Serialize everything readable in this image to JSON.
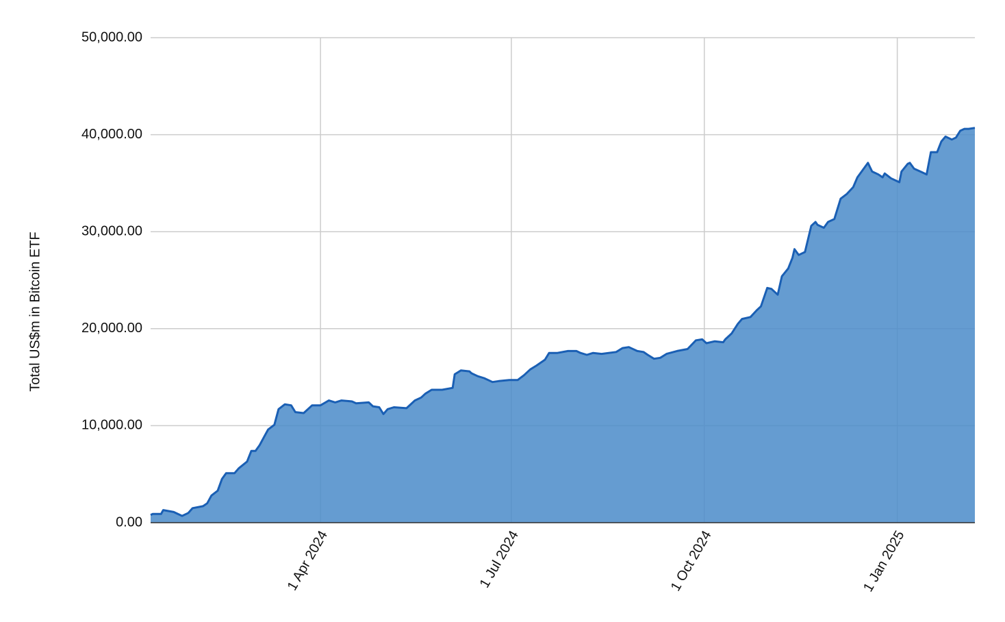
{
  "chart_data": {
    "type": "area",
    "y_label": "Total US$m in Bitcoin ETF",
    "color": "#4a8bc9",
    "line_color": "#1a5fb4",
    "grid": true,
    "xlim": [
      "2024-01-11",
      "2025-02-07"
    ],
    "xticks": [
      {
        "value": "2024-04-01",
        "label": "1 Apr 2024"
      },
      {
        "value": "2024-07-01",
        "label": "1 Jul 2024"
      },
      {
        "value": "2024-10-01",
        "label": "1 Oct 2024"
      },
      {
        "value": "2025-01-01",
        "label": "1 Jan 2025"
      }
    ],
    "ylim": [
      0,
      50000
    ],
    "yticks": [
      {
        "value": 0,
        "label": "0.00"
      },
      {
        "value": 10000,
        "label": "10,000.00"
      },
      {
        "value": 20000,
        "label": "20,000.00"
      },
      {
        "value": 30000,
        "label": "30,000.00"
      },
      {
        "value": 40000,
        "label": "40,000.00"
      },
      {
        "value": 50000,
        "label": "50,000.00"
      }
    ],
    "x": [
      "2024-01-11",
      "2024-01-12",
      "2024-01-16",
      "2024-01-17",
      "2024-01-22",
      "2024-01-26",
      "2024-01-29",
      "2024-01-31",
      "2024-02-05",
      "2024-02-07",
      "2024-02-09",
      "2024-02-12",
      "2024-02-14",
      "2024-02-16",
      "2024-02-20",
      "2024-02-22",
      "2024-02-26",
      "2024-02-28",
      "2024-03-01",
      "2024-03-03",
      "2024-03-05",
      "2024-03-07",
      "2024-03-10",
      "2024-03-12",
      "2024-03-15",
      "2024-03-18",
      "2024-03-20",
      "2024-03-24",
      "2024-03-28",
      "2024-04-01",
      "2024-04-05",
      "2024-04-08",
      "2024-04-11",
      "2024-04-16",
      "2024-04-18",
      "2024-04-24",
      "2024-04-26",
      "2024-04-29",
      "2024-05-01",
      "2024-05-03",
      "2024-05-06",
      "2024-05-12",
      "2024-05-16",
      "2024-05-19",
      "2024-05-21",
      "2024-05-24",
      "2024-05-29",
      "2024-06-03",
      "2024-06-04",
      "2024-06-07",
      "2024-06-11",
      "2024-06-12",
      "2024-06-15",
      "2024-06-18",
      "2024-06-22",
      "2024-06-25",
      "2024-06-30",
      "2024-07-04",
      "2024-07-07",
      "2024-07-10",
      "2024-07-13",
      "2024-07-17",
      "2024-07-19",
      "2024-07-23",
      "2024-07-28",
      "2024-08-01",
      "2024-08-03",
      "2024-08-06",
      "2024-08-09",
      "2024-08-13",
      "2024-08-20",
      "2024-08-23",
      "2024-08-26",
      "2024-08-30",
      "2024-09-02",
      "2024-09-04",
      "2024-09-07",
      "2024-09-10",
      "2024-09-13",
      "2024-09-18",
      "2024-09-23",
      "2024-09-27",
      "2024-09-30",
      "2024-10-02",
      "2024-10-06",
      "2024-10-10",
      "2024-10-11",
      "2024-10-14",
      "2024-10-17",
      "2024-10-19",
      "2024-10-23",
      "2024-10-26",
      "2024-10-28",
      "2024-10-31",
      "2024-11-02",
      "2024-11-05",
      "2024-11-07",
      "2024-11-10",
      "2024-11-12",
      "2024-11-13",
      "2024-11-15",
      "2024-11-18",
      "2024-11-21",
      "2024-11-23",
      "2024-11-24",
      "2024-11-27",
      "2024-11-29",
      "2024-12-02",
      "2024-12-05",
      "2024-12-08",
      "2024-12-11",
      "2024-12-13",
      "2024-12-16",
      "2024-12-18",
      "2024-12-20",
      "2024-12-23",
      "2024-12-25",
      "2024-12-26",
      "2024-12-29",
      "2025-01-02",
      "2025-01-03",
      "2025-01-06",
      "2025-01-07",
      "2025-01-09",
      "2025-01-13",
      "2025-01-15",
      "2025-01-17",
      "2025-01-20",
      "2025-01-22",
      "2025-01-24",
      "2025-01-27",
      "2025-01-29",
      "2025-01-31",
      "2025-02-02",
      "2025-02-04",
      "2025-02-07"
    ],
    "values": [
      800,
      900,
      900,
      1300,
      1100,
      700,
      1000,
      1500,
      1700,
      2000,
      2800,
      3300,
      4500,
      5100,
      5100,
      5600,
      6300,
      7400,
      7400,
      8000,
      8800,
      9600,
      10100,
      11700,
      12200,
      12100,
      11400,
      11300,
      12100,
      12100,
      12600,
      12400,
      12600,
      12500,
      12300,
      12400,
      12000,
      11900,
      11200,
      11700,
      11900,
      11800,
      12600,
      12900,
      13300,
      13700,
      13700,
      13900,
      15300,
      15700,
      15600,
      15400,
      15100,
      14900,
      14500,
      14600,
      14700,
      14700,
      15200,
      15800,
      16200,
      16800,
      17500,
      17500,
      17700,
      17700,
      17500,
      17300,
      17500,
      17400,
      17600,
      18000,
      18100,
      17700,
      17600,
      17300,
      16900,
      17000,
      17400,
      17700,
      17900,
      18800,
      18900,
      18500,
      18700,
      18600,
      18900,
      19500,
      20500,
      21000,
      21200,
      21900,
      22300,
      24200,
      24100,
      23500,
      25400,
      26200,
      27300,
      28200,
      27600,
      27900,
      30600,
      31000,
      30700,
      30400,
      31000,
      31300,
      33400,
      33900,
      34600,
      35600,
      36500,
      37100,
      36200,
      35900,
      35600,
      36000,
      35500,
      35100,
      36200,
      37000,
      37100,
      36500,
      36100,
      35900,
      38200,
      38200,
      39300,
      39800,
      39500,
      39700,
      40400,
      40600,
      40600,
      40700
    ]
  }
}
